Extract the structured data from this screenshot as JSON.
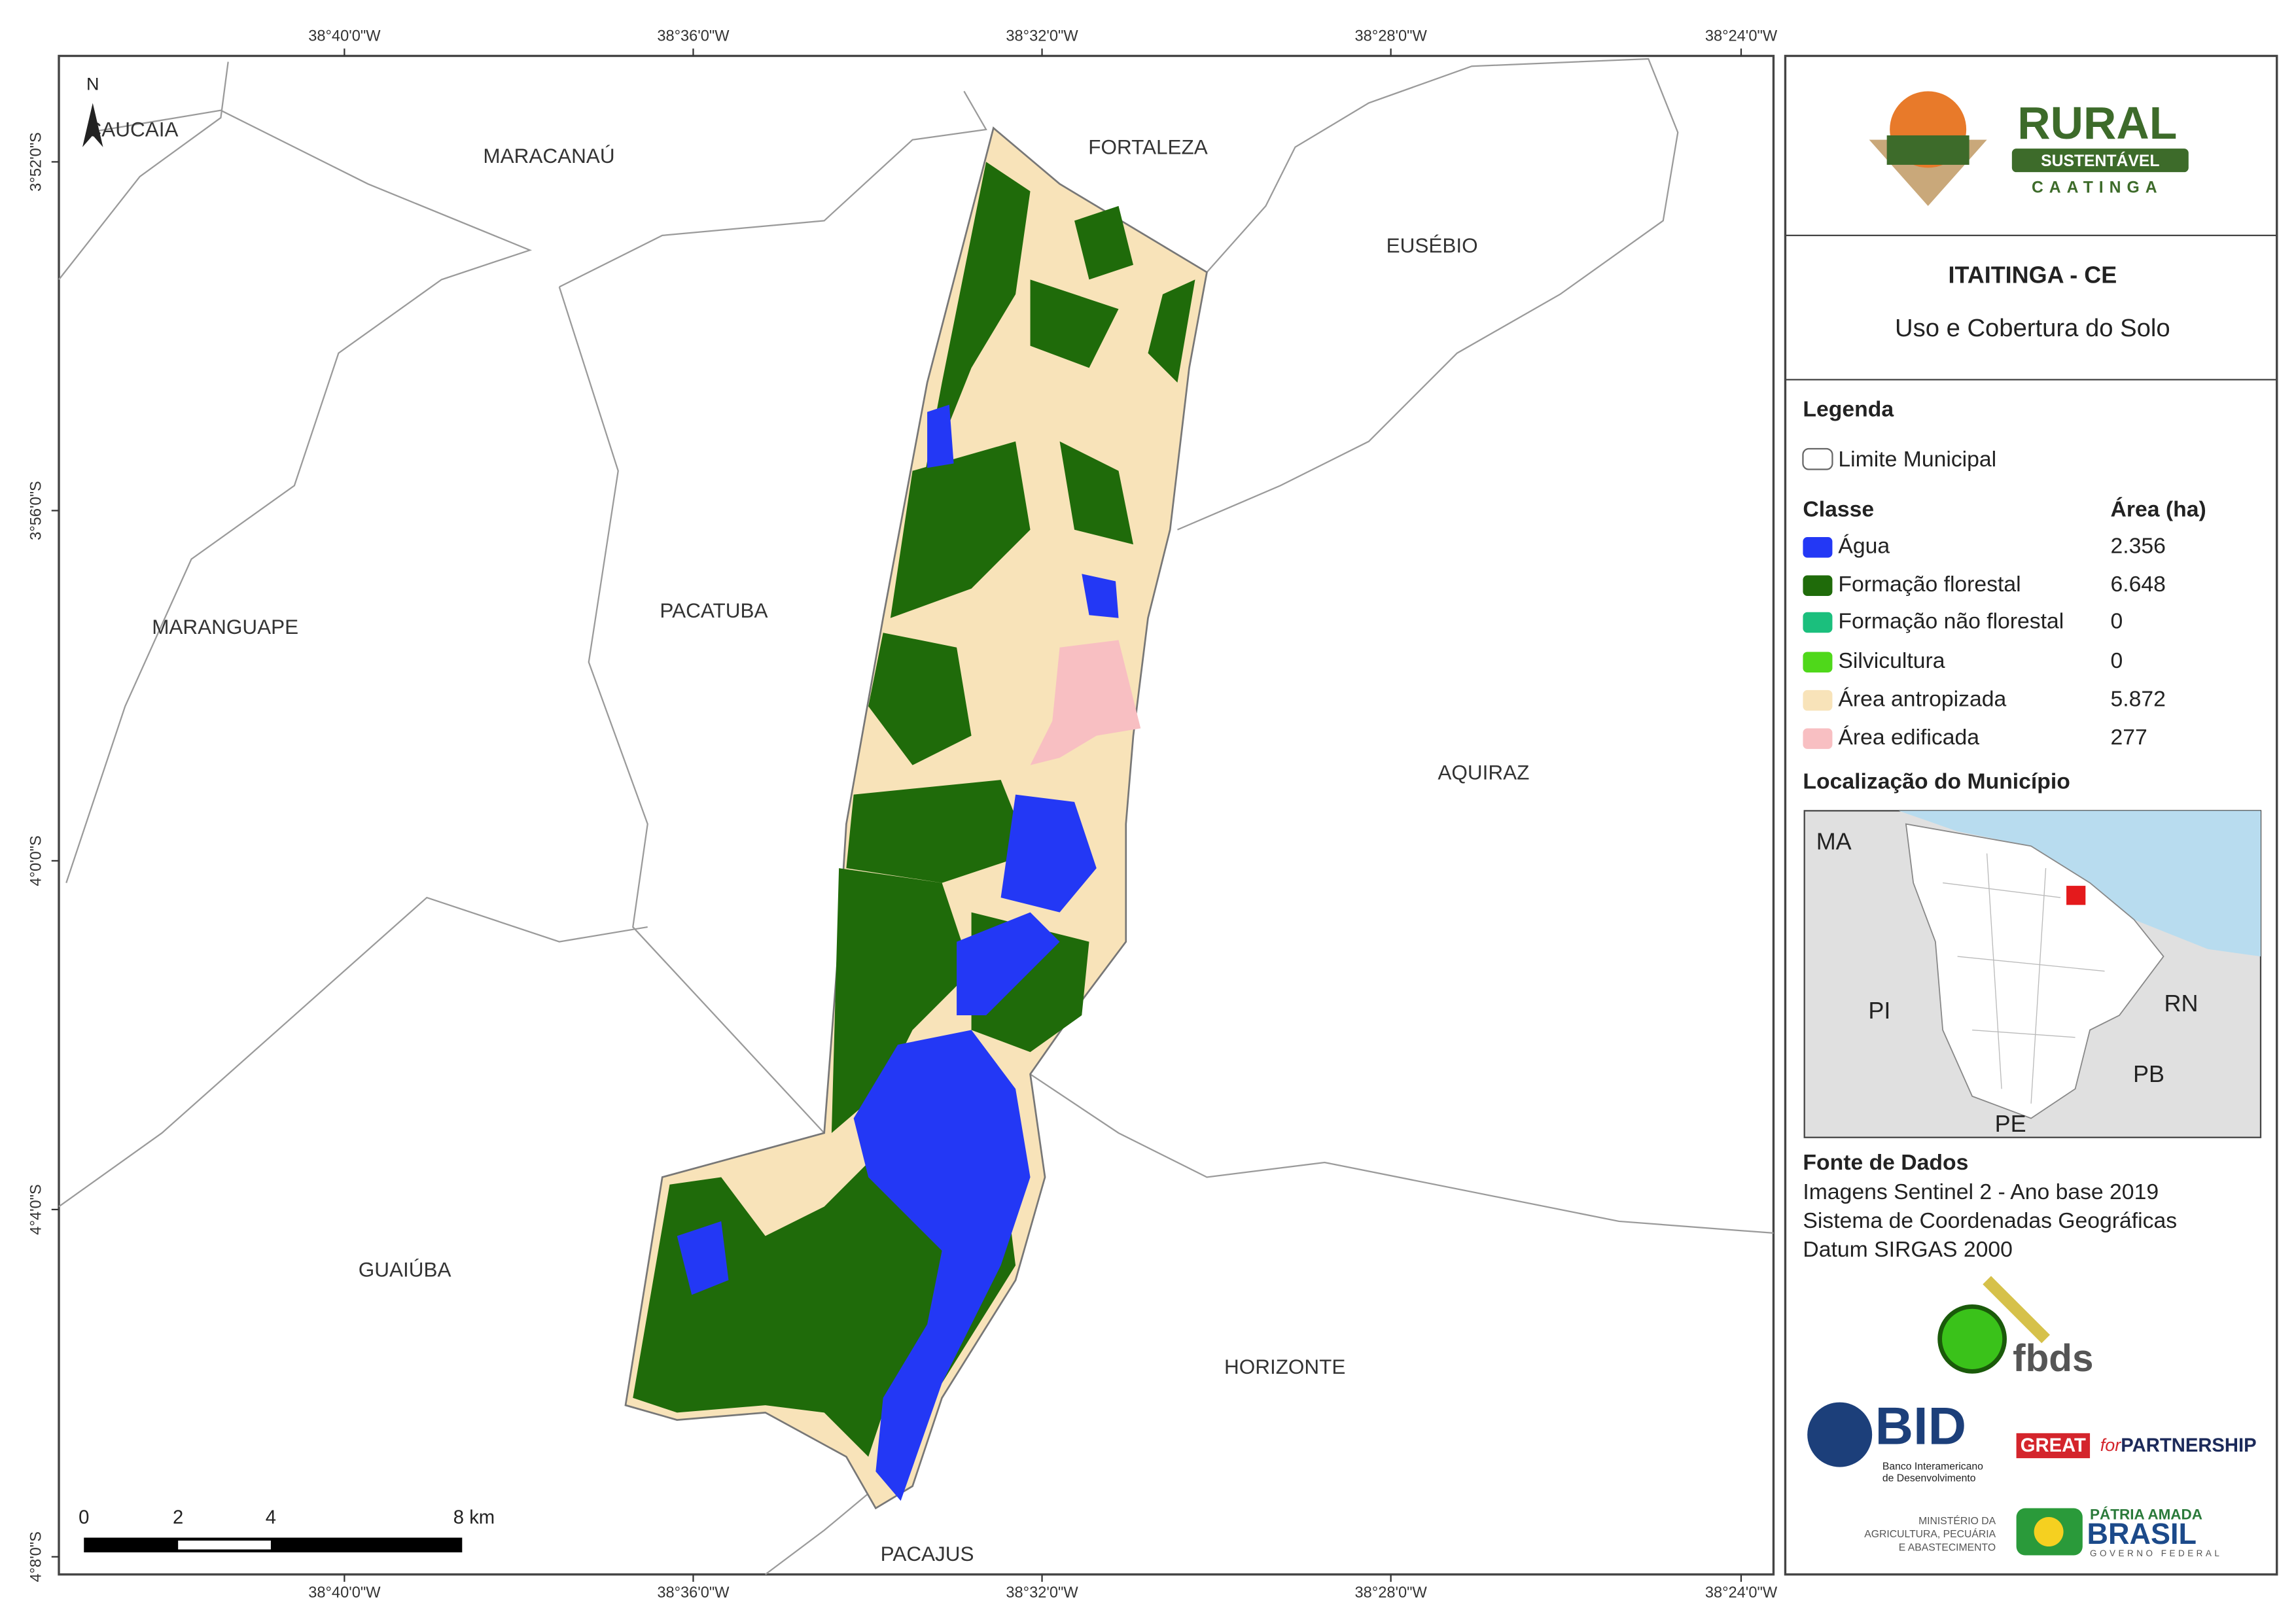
{
  "map": {
    "top_coords": [
      "38°40'0\"W",
      "38°36'0\"W",
      "38°32'0\"W",
      "38°28'0\"W",
      "38°24'0\"W"
    ],
    "bottom_coords": [
      "38°40'0\"W",
      "38°36'0\"W",
      "38°32'0\"W",
      "38°28'0\"W",
      "38°24'0\"W"
    ],
    "left_coords": [
      "3°52'0\"S",
      "3°56'0\"S",
      "4°0'0\"S",
      "4°4'0\"S",
      "4°8'0\"S"
    ],
    "municipalities": [
      "CAUCAIA",
      "MARACANAÚ",
      "FORTALEZA",
      "EUSÉBIO",
      "PACATUBA",
      "MARANGUAPE",
      "AQUIRAZ",
      "GUAIÚBA",
      "HORIZONTE",
      "PACAJUS"
    ],
    "north": "N",
    "scale_labels": [
      "0",
      "2",
      "4",
      "8 km"
    ]
  },
  "panel": {
    "logo": {
      "main": "RURAL",
      "band": "SUSTENTÁVEL",
      "sub": "CAATINGA"
    },
    "title": "ITAITINGA - CE",
    "subtitle": "Uso e Cobertura do Solo",
    "legend": {
      "heading": "Legenda",
      "boundary": "Limite Municipal",
      "class_header": "Classe",
      "area_header": "Área (ha)",
      "classes": [
        {
          "name": "Água",
          "area": "2.356",
          "color": "#2338f5"
        },
        {
          "name": "Formação florestal",
          "area": "6.648",
          "color": "#1f6b0a"
        },
        {
          "name": "Formação não florestal",
          "area": "0",
          "color": "#1bbf7d"
        },
        {
          "name": "Silvicultura",
          "area": "0",
          "color": "#4fd81a"
        },
        {
          "name": "Área antropizada",
          "area": "5.872",
          "color": "#f8e3b9"
        },
        {
          "name": "Área edificada",
          "area": "277",
          "color": "#f8bfc2"
        }
      ]
    },
    "location": {
      "heading": "Localização do Município",
      "states": [
        "MA",
        "PI",
        "RN",
        "PB",
        "PE"
      ]
    },
    "sources": {
      "heading": "Fonte de Dados",
      "lines": [
        "Imagens Sentinel 2 - Ano base 2019",
        "Sistema de Coordenadas Geográficas",
        "Datum SIRGAS 2000"
      ]
    },
    "partners": {
      "fbds": "fbds",
      "bid": "BID",
      "bid_lines": [
        "Banco Interamericano",
        "de Desenvolvimento"
      ],
      "great": "GREAT",
      "great_for": "for",
      "great_partnership": "PARTNERSHIP",
      "ministry_lines": [
        "MINISTÉRIO DA",
        "AGRICULTURA, PECUÁRIA",
        "E ABASTECIMENTO"
      ],
      "brasil_top": "PÁTRIA AMADA",
      "brasil_main": "BRASIL",
      "brasil_sub": "GOVERNO FEDERAL"
    }
  }
}
